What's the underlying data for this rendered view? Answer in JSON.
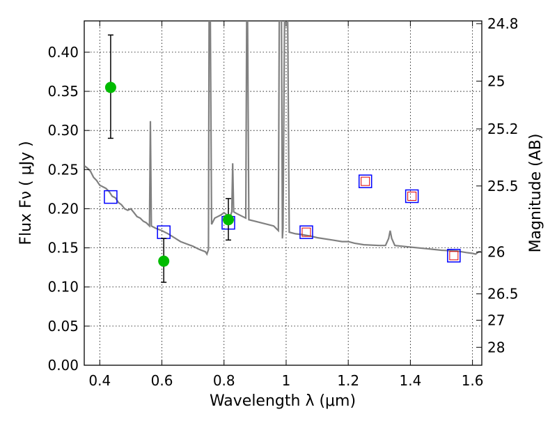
{
  "chart_data": {
    "type": "scatter",
    "title": "",
    "xlabel": "Wavelength  λ (μm)",
    "ylabel": "Flux  Fν  ( μJy )",
    "y2label": "Magnitude (AB)",
    "xlim": [
      0.35,
      1.63
    ],
    "ylim": [
      0.0,
      0.44
    ],
    "grid": true,
    "x_ticks": [
      0.4,
      0.6,
      0.8,
      1.0,
      1.2,
      1.4,
      1.6
    ],
    "x_tick_labels": [
      "0.4",
      "0.6",
      "0.8",
      "1",
      "1.2",
      "1.4",
      "1.6"
    ],
    "y_ticks": [
      0.0,
      0.05,
      0.1,
      0.15,
      0.2,
      0.25,
      0.3,
      0.35,
      0.4
    ],
    "y_tick_labels": [
      "0.00",
      "0.05",
      "0.10",
      "0.15",
      "0.20",
      "0.25",
      "0.30",
      "0.35",
      "0.40"
    ],
    "y2_ticks": [
      24.8,
      25,
      25.2,
      25.5,
      26,
      26.5,
      27,
      28
    ],
    "y2_tick_labels": [
      "24.8",
      "25",
      "25.2",
      "25.5",
      "26",
      "26.5",
      "27",
      "28"
    ],
    "series": [
      {
        "kind": "line",
        "color": "#808080",
        "points": [
          [
            0.35,
            0.255
          ],
          [
            0.36,
            0.252
          ],
          [
            0.37,
            0.248
          ],
          [
            0.38,
            0.24
          ],
          [
            0.39,
            0.236
          ],
          [
            0.4,
            0.23
          ],
          [
            0.41,
            0.228
          ],
          [
            0.42,
            0.226
          ],
          [
            0.43,
            0.222
          ],
          [
            0.44,
            0.216
          ],
          [
            0.45,
            0.214
          ],
          [
            0.46,
            0.208
          ],
          [
            0.47,
            0.205
          ],
          [
            0.48,
            0.2
          ],
          [
            0.49,
            0.198
          ],
          [
            0.5,
            0.2
          ],
          [
            0.51,
            0.195
          ],
          [
            0.52,
            0.19
          ],
          [
            0.53,
            0.188
          ],
          [
            0.54,
            0.184
          ],
          [
            0.55,
            0.182
          ],
          [
            0.555,
            0.18
          ],
          [
            0.56,
            0.178
          ],
          [
            0.563,
            0.312
          ],
          [
            0.566,
            0.178
          ],
          [
            0.58,
            0.175
          ],
          [
            0.6,
            0.172
          ],
          [
            0.62,
            0.168
          ],
          [
            0.64,
            0.163
          ],
          [
            0.66,
            0.158
          ],
          [
            0.68,
            0.155
          ],
          [
            0.7,
            0.152
          ],
          [
            0.72,
            0.148
          ],
          [
            0.74,
            0.145
          ],
          [
            0.745,
            0.142
          ],
          [
            0.75,
            0.148
          ],
          [
            0.752,
            0.44
          ],
          [
            0.756,
            0.44
          ],
          [
            0.76,
            0.18
          ],
          [
            0.77,
            0.188
          ],
          [
            0.78,
            0.19
          ],
          [
            0.79,
            0.192
          ],
          [
            0.8,
            0.195
          ],
          [
            0.81,
            0.192
          ],
          [
            0.82,
            0.19
          ],
          [
            0.825,
            0.196
          ],
          [
            0.828,
            0.258
          ],
          [
            0.831,
            0.196
          ],
          [
            0.84,
            0.194
          ],
          [
            0.86,
            0.19
          ],
          [
            0.87,
            0.188
          ],
          [
            0.873,
            0.44
          ],
          [
            0.876,
            0.44
          ],
          [
            0.88,
            0.186
          ],
          [
            0.9,
            0.184
          ],
          [
            0.92,
            0.182
          ],
          [
            0.94,
            0.18
          ],
          [
            0.96,
            0.178
          ],
          [
            0.975,
            0.172
          ],
          [
            0.978,
            0.44
          ],
          [
            0.985,
            0.44
          ],
          [
            0.988,
            0.162
          ],
          [
            0.99,
            0.175
          ],
          [
            0.995,
            0.44
          ],
          [
            1.005,
            0.44
          ],
          [
            1.01,
            0.17
          ],
          [
            1.03,
            0.168
          ],
          [
            1.05,
            0.167
          ],
          [
            1.08,
            0.165
          ],
          [
            1.1,
            0.163
          ],
          [
            1.15,
            0.16
          ],
          [
            1.18,
            0.158
          ],
          [
            1.2,
            0.158
          ],
          [
            1.22,
            0.156
          ],
          [
            1.25,
            0.154
          ],
          [
            1.3,
            0.153
          ],
          [
            1.32,
            0.153
          ],
          [
            1.33,
            0.162
          ],
          [
            1.335,
            0.172
          ],
          [
            1.34,
            0.162
          ],
          [
            1.35,
            0.153
          ],
          [
            1.4,
            0.151
          ],
          [
            1.45,
            0.149
          ],
          [
            1.5,
            0.147
          ],
          [
            1.55,
            0.146
          ],
          [
            1.58,
            0.144
          ],
          [
            1.6,
            0.143
          ],
          [
            1.61,
            0.142
          ],
          [
            1.62,
            0.145
          ],
          [
            1.63,
            0.145
          ]
        ]
      },
      {
        "kind": "model_photometry",
        "marker": "open-square",
        "color": "#0000ff",
        "points": [
          [
            0.435,
            0.215
          ],
          [
            0.606,
            0.17
          ],
          [
            0.814,
            0.182
          ],
          [
            1.065,
            0.17
          ],
          [
            1.255,
            0.235
          ],
          [
            1.405,
            0.216
          ],
          [
            1.54,
            0.14
          ]
        ]
      },
      {
        "kind": "observed_photometry",
        "marker": "open-square",
        "color": "#dd0000",
        "points": [
          [
            1.065,
            0.17
          ],
          [
            1.255,
            0.235
          ],
          [
            1.405,
            0.216
          ],
          [
            1.54,
            0.14
          ]
        ]
      },
      {
        "kind": "observed_points",
        "marker": "circle",
        "color": "#00bb00",
        "points": [
          [
            0.435,
            0.355,
            0.29,
            0.422
          ],
          [
            0.606,
            0.133,
            0.106,
            0.162
          ],
          [
            0.814,
            0.186,
            0.16,
            0.213
          ]
        ]
      }
    ]
  }
}
